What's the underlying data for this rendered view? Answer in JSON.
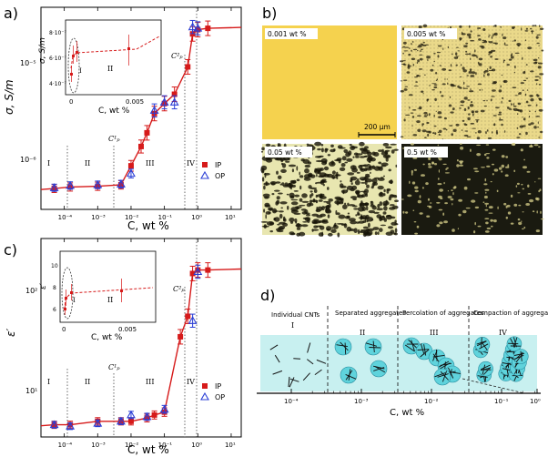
{
  "panel_a": {
    "label": "a)",
    "ylabel": "σ, S/m",
    "xlabel": "C, wt %",
    "ytick_upper": "10⁻⁵",
    "ytick_lower": "10⁻⁶",
    "xticks": [
      "10⁻⁴",
      "10⁻³",
      "10⁻²",
      "10⁻¹",
      "10⁰",
      "10¹"
    ],
    "regions": [
      "I",
      "II",
      "III",
      "IV"
    ],
    "cp1": "C¹ₚ",
    "cp2": "C²ₚ",
    "legend_ip": "IP",
    "legend_op": "OP",
    "inset": {
      "ylabel": "σ, S/m",
      "xlabel": "C, wt %",
      "yticks": [
        "8·10⁻⁷",
        "6·10⁻⁷",
        "4·10⁻⁷"
      ],
      "xticks": [
        "0",
        "0.005"
      ],
      "regions": [
        "I",
        "II"
      ]
    }
  },
  "panel_b": {
    "label": "b)",
    "images": [
      "0.001 wt %",
      "0.005 wt %",
      "0.05 wt %",
      "0.5 wt %"
    ],
    "scale": "200 µm"
  },
  "panel_c": {
    "label": "c)",
    "ylabel": "ε′",
    "xlabel": "C, wt %",
    "ytick_upper": "10²",
    "ytick_lower": "10¹",
    "xticks": [
      "10⁻⁴",
      "10⁻³",
      "10⁻²",
      "10⁻¹",
      "10⁰",
      "10¹"
    ],
    "regions": [
      "I",
      "II",
      "III",
      "IV"
    ],
    "cp1": "C¹ₚ",
    "cp2": "C²ₚ",
    "legend_ip": "IP",
    "legend_op": "OP",
    "inset": {
      "ylabel": "ε′",
      "xlabel": "C, wt %",
      "yticks": [
        "10",
        "8",
        "6"
      ],
      "xticks": [
        "0",
        "0.005"
      ],
      "regions": [
        "I",
        "II"
      ]
    }
  },
  "panel_d": {
    "label": "d)",
    "stages": [
      "Individual CNTs",
      "Separated aggregates",
      "Percolation of aggregates",
      "Compaction of aggregates"
    ],
    "numerals": [
      "I",
      "II",
      "III",
      "IV"
    ],
    "xticks": [
      "10⁻⁴",
      "10⁻³",
      "10⁻²",
      "10⁻¹",
      "10⁰"
    ],
    "xlabel": "C, wt %"
  },
  "chart_data": [
    {
      "type": "scatter",
      "title": "",
      "xlabel": "C, wt %",
      "ylabel": "σ, S/m",
      "xscale": "log",
      "yscale": "log",
      "xlim": [
        2e-05,
        20
      ],
      "ylim": [
        4e-07,
        2.8e-05
      ],
      "series": [
        {
          "name": "IP",
          "x": [
            5e-05,
            0.00015,
            0.001,
            0.005,
            0.01,
            0.02,
            0.03,
            0.05,
            0.1,
            0.2,
            0.5,
            0.7,
            1.0,
            2.0
          ],
          "y": [
            6.2e-07,
            6.4e-07,
            6.5e-07,
            6.7e-07,
            1e-06,
            1.5e-06,
            2e-06,
            3e-06,
            3.7e-06,
            4.5e-06,
            8e-06,
            1.6e-05,
            1.75e-05,
            1.8e-05
          ]
        },
        {
          "name": "OP",
          "x": [
            5e-05,
            0.00015,
            0.001,
            0.005,
            0.01,
            0.05,
            0.1,
            0.2,
            0.7,
            1.0
          ],
          "y": [
            6.3e-07,
            6.6e-07,
            6.7e-07,
            6.8e-07,
            8.5e-07,
            3.2e-06,
            3.8e-06,
            3.8e-06,
            1.85e-05,
            1.8e-05
          ]
        }
      ]
    },
    {
      "type": "scatter",
      "title": "",
      "xlabel": "C, wt %",
      "ylabel": "ε′",
      "xscale": "log",
      "yscale": "log",
      "xlim": [
        2e-05,
        20
      ],
      "ylim": [
        5.5,
        280
      ],
      "series": [
        {
          "name": "IP",
          "x": [
            5e-05,
            0.00015,
            0.001,
            0.005,
            0.01,
            0.03,
            0.05,
            0.1,
            0.3,
            0.5,
            0.7,
            1.0,
            2.0
          ],
          "y": [
            7,
            7,
            7.5,
            7.5,
            7.5,
            8,
            8.5,
            9,
            40,
            60,
            140,
            150,
            150
          ]
        },
        {
          "name": "OP",
          "x": [
            5e-05,
            0.00015,
            0.001,
            0.005,
            0.01,
            0.03,
            0.1,
            0.7,
            1.0
          ],
          "y": [
            7,
            6.8,
            7.2,
            7.5,
            8.5,
            8.2,
            9.5,
            55,
            145
          ]
        }
      ]
    }
  ]
}
